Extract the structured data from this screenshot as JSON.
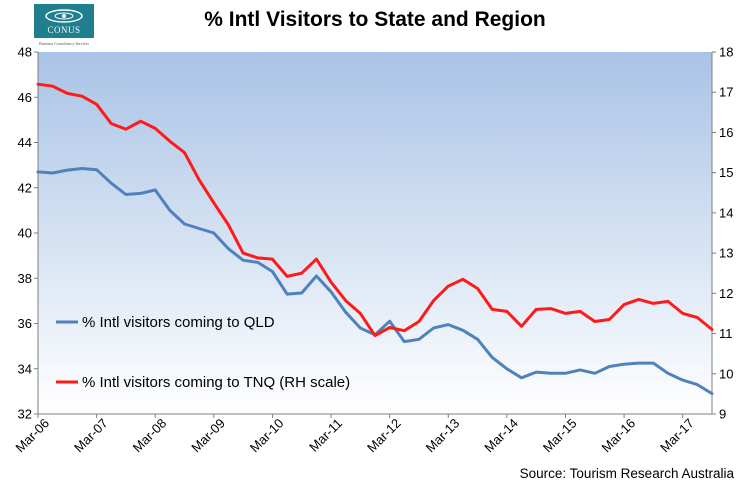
{
  "logo": {
    "text": "CONUS",
    "tagline": "Business Consultancy Services"
  },
  "colors": {
    "qld": "#4f81bd",
    "tnq": "#ff1a1a",
    "plot_top": "#a9c3e6",
    "plot_bottom": "#ffffff"
  },
  "chart_data": {
    "type": "line",
    "title": "% Intl Visitors to State and Region",
    "source": "Source: Tourism Research Australia",
    "x_tick_labels": [
      "Mar-06",
      "Mar-07",
      "Mar-08",
      "Mar-09",
      "Mar-10",
      "Mar-11",
      "Mar-12",
      "Mar-13",
      "Mar-14",
      "Mar-15",
      "Mar-16",
      "Mar-17"
    ],
    "x_start": "Mar-06",
    "x_end": "Sep-17",
    "frequency": "quarterly",
    "y_left": {
      "min": 32,
      "max": 48,
      "ticks": [
        32,
        34,
        36,
        38,
        40,
        42,
        44,
        46,
        48
      ]
    },
    "y_right": {
      "min": 9,
      "max": 18,
      "ticks": [
        9,
        10,
        11,
        12,
        13,
        14,
        15,
        16,
        17,
        18
      ]
    },
    "legend_placement": "inside-left",
    "series": [
      {
        "name": "% Intl visitors coming to QLD",
        "axis": "left",
        "values": [
          42.7,
          42.65,
          42.78,
          42.85,
          42.8,
          42.2,
          41.7,
          41.75,
          41.9,
          41.0,
          40.4,
          40.2,
          40.0,
          39.3,
          38.8,
          38.7,
          38.3,
          37.3,
          37.35,
          38.1,
          37.4,
          36.5,
          35.8,
          35.5,
          36.1,
          35.2,
          35.3,
          35.8,
          35.95,
          35.7,
          35.3,
          34.5,
          34.0,
          33.6,
          33.85,
          33.8,
          33.8,
          33.95,
          33.8,
          34.1,
          34.2,
          34.25,
          34.25,
          33.8,
          33.5,
          33.3,
          32.9
        ]
      },
      {
        "name": "% Intl visitors coming to TNQ (RH scale)",
        "axis": "right",
        "values": [
          17.2,
          17.15,
          16.97,
          16.9,
          16.7,
          16.22,
          16.08,
          16.28,
          16.1,
          15.78,
          15.5,
          14.82,
          14.25,
          13.7,
          13.0,
          12.88,
          12.85,
          12.42,
          12.5,
          12.85,
          12.28,
          11.82,
          11.5,
          10.95,
          11.15,
          11.07,
          11.3,
          11.82,
          12.18,
          12.35,
          12.12,
          11.6,
          11.55,
          11.18,
          11.6,
          11.62,
          11.5,
          11.55,
          11.3,
          11.35,
          11.72,
          11.85,
          11.75,
          11.8,
          11.5,
          11.4,
          11.1
        ]
      }
    ]
  }
}
